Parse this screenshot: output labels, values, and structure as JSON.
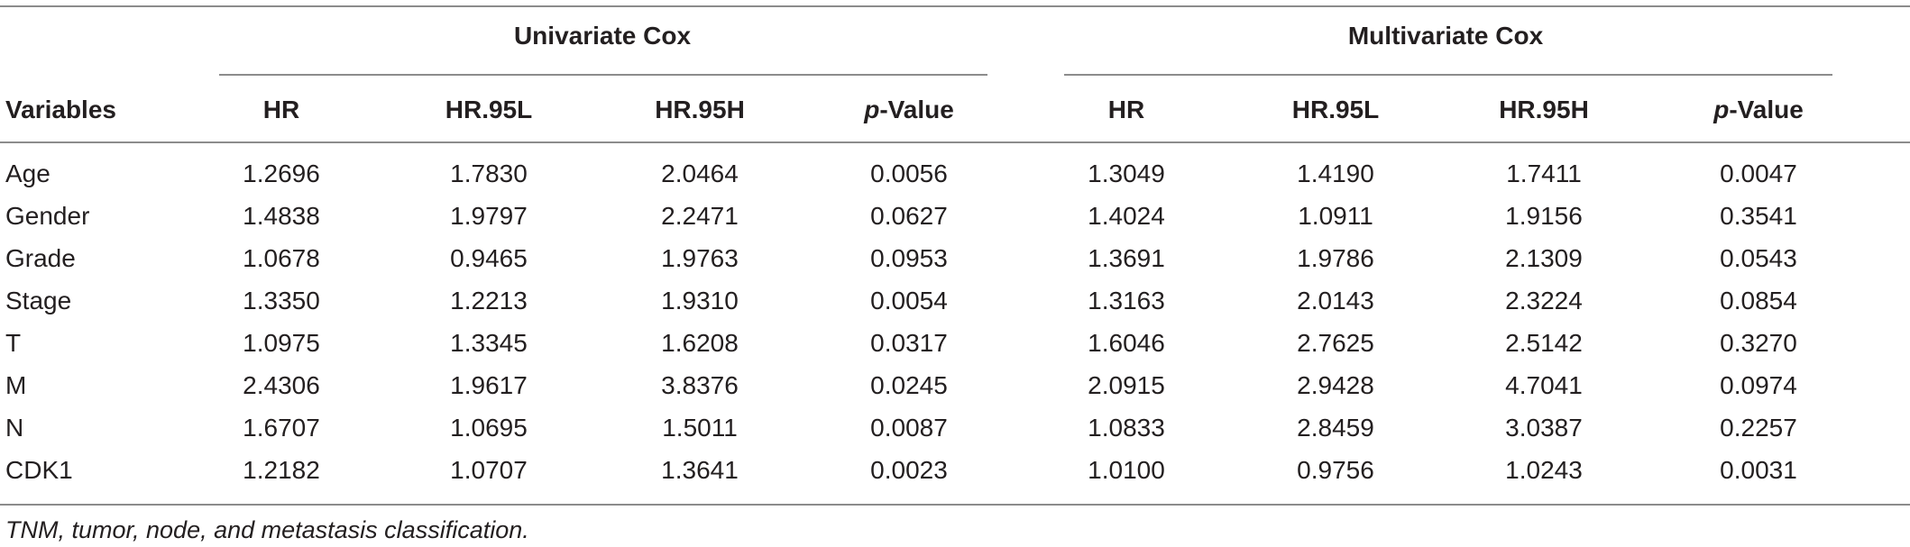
{
  "groups": {
    "univariate": "Univariate Cox",
    "multivariate": "Multivariate Cox"
  },
  "headers": {
    "variables": "Variables",
    "hr": "HR",
    "hr95l": "HR.95L",
    "hr95h": "HR.95H",
    "p_italic": "p",
    "p_rest": "-Value"
  },
  "rows": [
    {
      "variable": "Age",
      "uni": [
        "1.2696",
        "1.7830",
        "2.0464",
        "0.0056"
      ],
      "multi": [
        "1.3049",
        "1.4190",
        "1.7411",
        "0.0047"
      ]
    },
    {
      "variable": "Gender",
      "uni": [
        "1.4838",
        "1.9797",
        "2.2471",
        "0.0627"
      ],
      "multi": [
        "1.4024",
        "1.0911",
        "1.9156",
        "0.3541"
      ]
    },
    {
      "variable": "Grade",
      "uni": [
        "1.0678",
        "0.9465",
        "1.9763",
        "0.0953"
      ],
      "multi": [
        "1.3691",
        "1.9786",
        "2.1309",
        "0.0543"
      ]
    },
    {
      "variable": "Stage",
      "uni": [
        "1.3350",
        "1.2213",
        "1.9310",
        "0.0054"
      ],
      "multi": [
        "1.3163",
        "2.0143",
        "2.3224",
        "0.0854"
      ]
    },
    {
      "variable": "T",
      "uni": [
        "1.0975",
        "1.3345",
        "1.6208",
        "0.0317"
      ],
      "multi": [
        "1.6046",
        "2.7625",
        "2.5142",
        "0.3270"
      ]
    },
    {
      "variable": "M",
      "uni": [
        "2.4306",
        "1.9617",
        "3.8376",
        "0.0245"
      ],
      "multi": [
        "2.0915",
        "2.9428",
        "4.7041",
        "0.0974"
      ]
    },
    {
      "variable": "N",
      "uni": [
        "1.6707",
        "1.0695",
        "1.5011",
        "0.0087"
      ],
      "multi": [
        "1.0833",
        "2.8459",
        "3.0387",
        "0.2257"
      ]
    },
    {
      "variable": "CDK1",
      "uni": [
        "1.2182",
        "1.0707",
        "1.3641",
        "0.0023"
      ],
      "multi": [
        "1.0100",
        "0.9756",
        "1.0243",
        "0.0031"
      ]
    }
  ],
  "footnote": "TNM, tumor, node, and metastasis classification."
}
